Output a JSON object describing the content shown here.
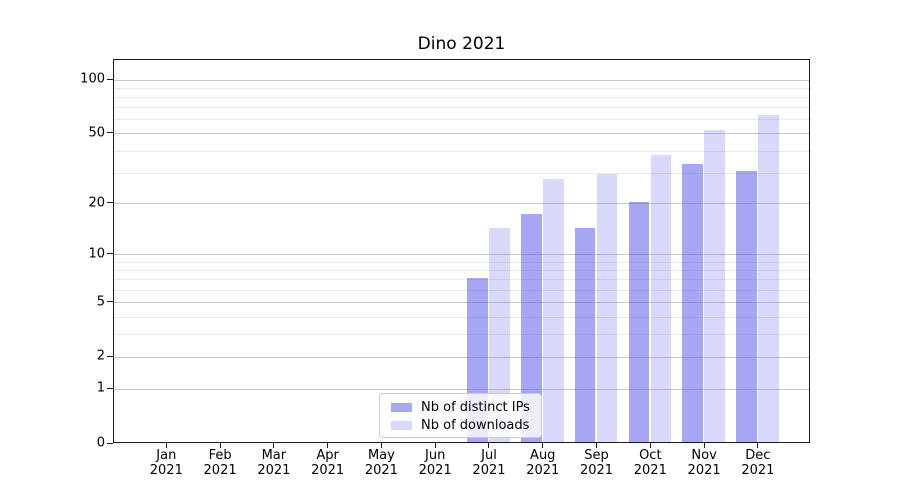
{
  "title": "Dino 2021",
  "colors": {
    "bar_base": "#6666ee",
    "bar_dark_alpha": 0.58,
    "bar_light_alpha": 0.25,
    "grid_major": "#c9c9c9",
    "grid_minor": "#e9e9e9",
    "spine": "#1a1a1a",
    "legend_border": "#cccccc",
    "text": "#000000"
  },
  "chart_data": {
    "type": "bar",
    "title": "Dino 2021",
    "categories": [
      "Jan",
      "Feb",
      "Mar",
      "Apr",
      "May",
      "Jun",
      "Jul",
      "Aug",
      "Sep",
      "Oct",
      "Nov",
      "Dec"
    ],
    "category_year": "2021",
    "series": [
      {
        "name": "Nb of distinct IPs",
        "values": [
          0,
          0,
          0,
          0,
          0,
          0,
          7,
          17,
          14,
          20,
          33,
          30
        ]
      },
      {
        "name": "Nb of downloads",
        "values": [
          0,
          0,
          0,
          0,
          0,
          0,
          14,
          27,
          29,
          37,
          51,
          62
        ]
      }
    ],
    "yscale": "log1p (symlog-like, linear near 0)",
    "ylim": [
      0,
      130
    ],
    "y_major_ticks": [
      0,
      1,
      2,
      5,
      10,
      20,
      50,
      100
    ],
    "y_ticklabels": [
      "0",
      "1",
      "2",
      "5",
      "10",
      "20",
      "50",
      "100"
    ],
    "y_minor_gridlines": [
      3,
      4,
      6,
      7,
      8,
      9,
      30,
      40,
      60,
      70,
      80,
      90
    ],
    "grid": "horizontal major+minor, visible through translucent bars",
    "legend_position": "inside bottom, center-right"
  }
}
